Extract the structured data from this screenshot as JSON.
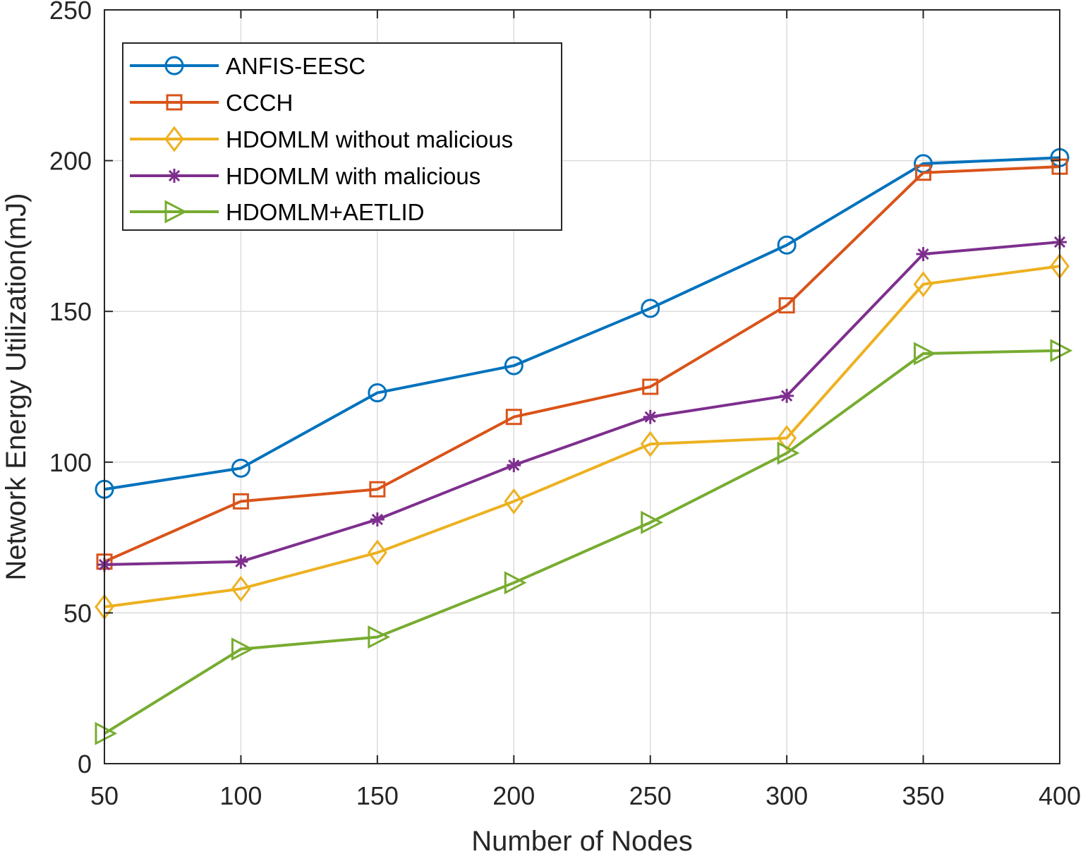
{
  "chart_data": {
    "type": "line",
    "title": "",
    "xlabel": "Number of Nodes",
    "ylabel": "Network Energy Utilization(mJ)",
    "x": [
      50,
      100,
      150,
      200,
      250,
      300,
      350,
      400
    ],
    "xlim": [
      50,
      400
    ],
    "ylim": [
      0,
      250
    ],
    "xticks": [
      "50",
      "100",
      "150",
      "200",
      "250",
      "300",
      "350",
      "400"
    ],
    "yticks": [
      "0",
      "50",
      "100",
      "150",
      "200",
      "250"
    ],
    "grid": true,
    "legend_location": "top-left",
    "series": [
      {
        "name": "ANFIS-EESC",
        "marker": "circle",
        "color": "#0072BD",
        "values": [
          91,
          98,
          123,
          132,
          151,
          172,
          199,
          201
        ]
      },
      {
        "name": "CCCH",
        "marker": "square",
        "color": "#D95319",
        "values": [
          67,
          87,
          91,
          115,
          125,
          152,
          196,
          198
        ]
      },
      {
        "name": "HDOMLM without malicious",
        "marker": "diamond",
        "color": "#EDB120",
        "values": [
          52,
          58,
          70,
          87,
          106,
          108,
          159,
          165
        ]
      },
      {
        "name": "HDOMLM with malicious",
        "marker": "asterisk",
        "color": "#7E2F8E",
        "values": [
          66,
          67,
          81,
          99,
          115,
          122,
          169,
          173
        ]
      },
      {
        "name": "HDOMLM+AETLID",
        "marker": "triangle-right",
        "color": "#77AC30",
        "values": [
          10,
          38,
          42,
          60,
          80,
          103,
          136,
          137
        ]
      }
    ]
  }
}
